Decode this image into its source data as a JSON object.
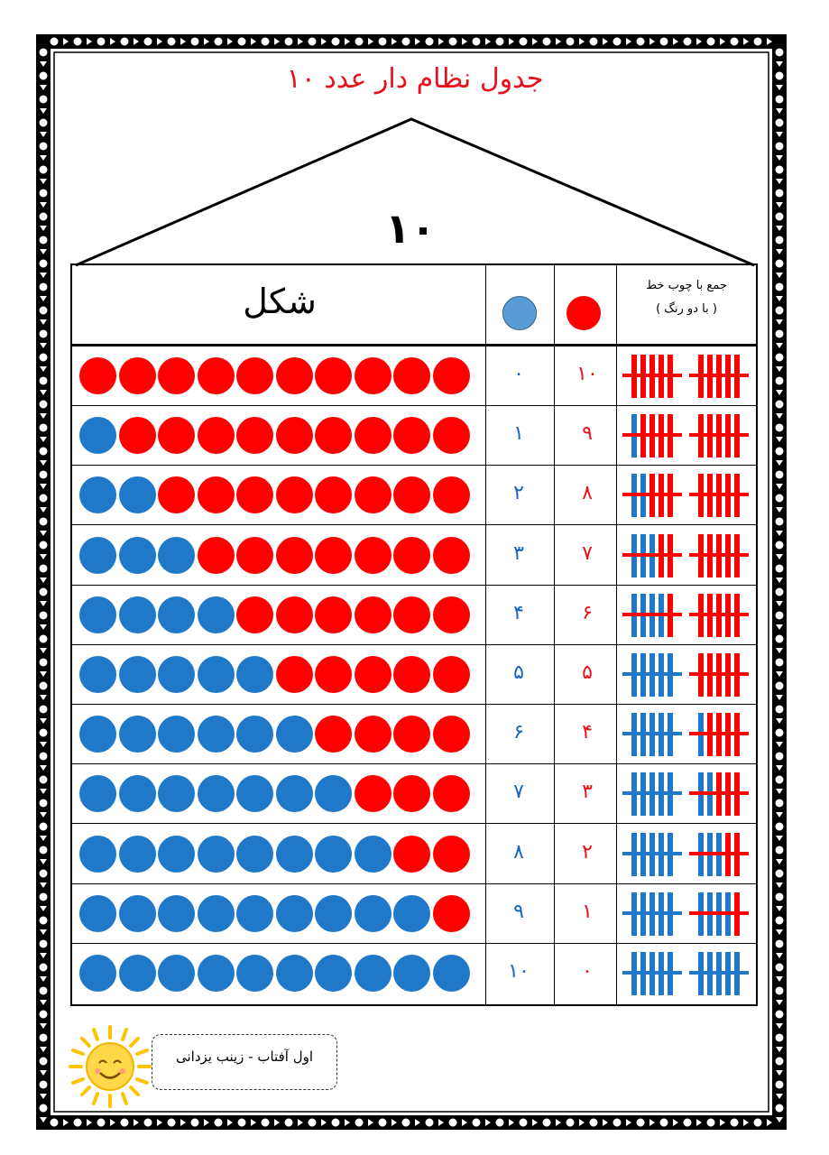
{
  "title": "جدول نظام دار عدد ۱۰",
  "big_number": "۱۰",
  "header": {
    "shape_label": "شکل",
    "sticks_label_line1": "جمع با چوب خط",
    "sticks_label_line2": "( با دو رنگ )"
  },
  "colors": {
    "red": "#ff0000",
    "blue": "#1f78c8",
    "header_blue": "#5b9bd5",
    "title_red": "#e8101a"
  },
  "rows": [
    {
      "red": "۱۰",
      "blue": "۰",
      "red_count": 10,
      "blue_count": 0
    },
    {
      "red": "۹",
      "blue": "۱",
      "red_count": 9,
      "blue_count": 1
    },
    {
      "red": "۸",
      "blue": "۲",
      "red_count": 8,
      "blue_count": 2
    },
    {
      "red": "۷",
      "blue": "۳",
      "red_count": 7,
      "blue_count": 3
    },
    {
      "red": "۶",
      "blue": "۴",
      "red_count": 6,
      "blue_count": 4
    },
    {
      "red": "۵",
      "blue": "۵",
      "red_count": 5,
      "blue_count": 5
    },
    {
      "red": "۴",
      "blue": "۶",
      "red_count": 4,
      "blue_count": 6
    },
    {
      "red": "۳",
      "blue": "۷",
      "red_count": 3,
      "blue_count": 7
    },
    {
      "red": "۲",
      "blue": "۸",
      "red_count": 2,
      "blue_count": 8
    },
    {
      "red": "۱",
      "blue": "۹",
      "red_count": 1,
      "blue_count": 9
    },
    {
      "red": "۰",
      "blue": "۱۰",
      "red_count": 0,
      "blue_count": 10
    }
  ],
  "footer": {
    "credit": "اول آفتاب - زینب یزدانی",
    "icon": "smiling-sun-icon"
  }
}
